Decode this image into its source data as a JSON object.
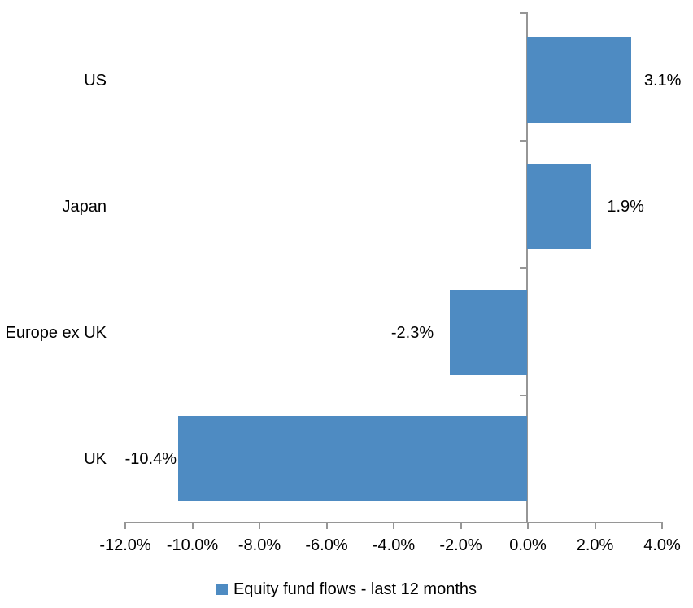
{
  "chart_data": {
    "type": "bar",
    "orientation": "horizontal",
    "title": "",
    "categories": [
      "US",
      "Japan",
      "Europe ex UK",
      "UK"
    ],
    "series": [
      {
        "name": "Equity fund flows - last 12 months",
        "values": [
          3.1,
          1.9,
          -2.3,
          -10.4
        ],
        "data_labels": [
          "3.1%",
          "1.9%",
          "-2.3%",
          "-10.4%"
        ]
      }
    ],
    "xlabel": "",
    "ylabel": "",
    "xlim": [
      -12,
      4
    ],
    "x_tick_step": 2,
    "x_tick_labels": [
      "-12.0%",
      "-10.0%",
      "-8.0%",
      "-6.0%",
      "-4.0%",
      "-2.0%",
      "0.0%",
      "2.0%",
      "4.0%"
    ],
    "grid": false,
    "legend_position": "bottom",
    "colors": {
      "bar": "#4E8BC2",
      "axis": "#969696",
      "text": "#000000",
      "background": "#FFFFFF"
    }
  },
  "legend": {
    "label": "Equity fund flows - last 12 months"
  }
}
